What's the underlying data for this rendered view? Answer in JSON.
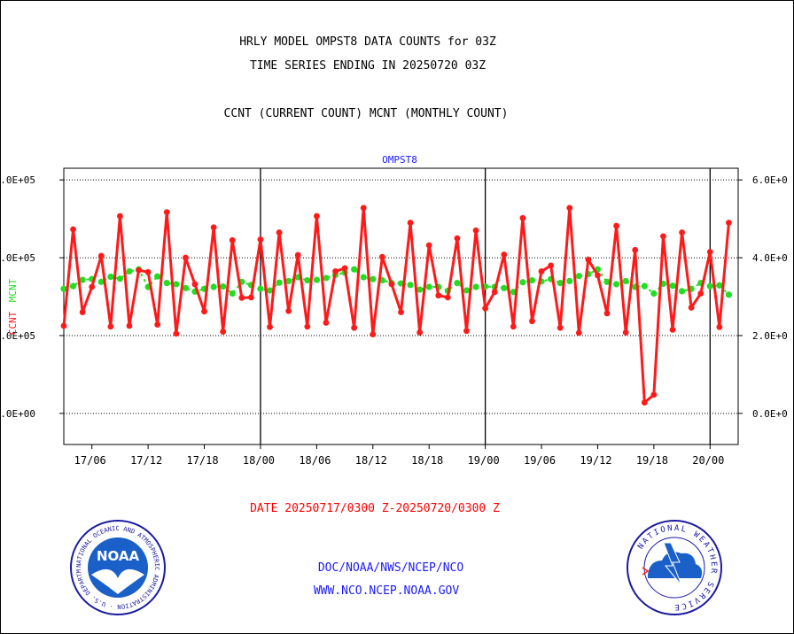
{
  "header": {
    "title_line1": "HRLY MODEL OMPST8 DATA COUNTS for 03Z",
    "title_line2": "TIME SERIES ENDING IN 20250720 03Z",
    "subtitle": "CCNT (CURRENT COUNT) MCNT (MONTHLY COUNT)"
  },
  "footer": {
    "date_range": "DATE 20250717/0300 Z-20250720/0300 Z",
    "link1": "DOC/NOAA/NWS/NCEP/NCO",
    "link2": "WWW.NCO.NCEP.NOAA.GOV"
  },
  "logos": {
    "noaa_text": "NOAA",
    "noaa_ring": "NATIONAL OCEANIC AND ATMOSPHERIC ADMINISTRATION · U.S. DEPARTMENT OF COMMERCE",
    "nws_ring": "NATIONAL WEATHER SERVICE"
  },
  "colors": {
    "ccnt": "#ff1a1a",
    "mcnt": "#22dd22",
    "title": "#000000",
    "date": "#ff0000",
    "links": "#1a1aff"
  },
  "chart_data": {
    "type": "line",
    "title": "OMPST8",
    "ylabel_left": [
      "CCNT",
      "MCNT"
    ],
    "left_ticks": [
      ".0E+00",
      ".0E+05",
      ".0E+05",
      ".0E+05"
    ],
    "right_ticks": [
      "0.0E+0",
      "2.0E+0",
      "4.0E+0",
      "6.0E+0"
    ],
    "tick_values": [
      0,
      200000,
      400000,
      600000
    ],
    "ylim": [
      -80000,
      630000
    ],
    "xlim": [
      0,
      72
    ],
    "x_ticks": [
      {
        "hour": 3,
        "label": "17/06"
      },
      {
        "hour": 9,
        "label": "17/12"
      },
      {
        "hour": 15,
        "label": "17/18"
      },
      {
        "hour": 21,
        "label": "18/00"
      },
      {
        "hour": 27,
        "label": "18/06"
      },
      {
        "hour": 33,
        "label": "18/12"
      },
      {
        "hour": 39,
        "label": "18/18"
      },
      {
        "hour": 45,
        "label": "19/00"
      },
      {
        "hour": 51,
        "label": "19/06"
      },
      {
        "hour": 57,
        "label": "19/12"
      },
      {
        "hour": 63,
        "label": "19/18"
      },
      {
        "hour": 69,
        "label": "20/00"
      }
    ],
    "day_boundaries": [
      21,
      45,
      69
    ],
    "series": [
      {
        "name": "CCNT",
        "values": [
          225000,
          473000,
          260000,
          325000,
          405000,
          223000,
          507000,
          225000,
          368000,
          363000,
          228000,
          517000,
          205000,
          400000,
          332000,
          262000,
          478000,
          210000,
          445000,
          297000,
          298000,
          447000,
          222000,
          465000,
          263000,
          407000,
          223000,
          507000,
          233000,
          365000,
          373000,
          220000,
          528000,
          203000,
          402000,
          332000,
          260000,
          490000,
          208000,
          432000,
          303000,
          298000,
          450000,
          212000,
          470000,
          270000,
          312000,
          408000,
          223000,
          502000,
          237000,
          365000,
          380000,
          220000,
          528000,
          207000,
          395000,
          355000,
          257000,
          482000,
          208000,
          420000,
          28000,
          48000,
          455000,
          215000,
          465000,
          272000,
          308000,
          415000,
          222000,
          490000
        ]
      },
      {
        "name": "MCNT",
        "values": [
          320000,
          327000,
          343000,
          345000,
          338000,
          351000,
          346000,
          365000,
          370000,
          325000,
          352000,
          335000,
          332000,
          322000,
          313000,
          320000,
          325000,
          326000,
          308000,
          338000,
          330000,
          320000,
          316000,
          336000,
          340000,
          350000,
          342000,
          343000,
          348000,
          356000,
          362000,
          370000,
          350000,
          345000,
          342000,
          335000,
          334000,
          330000,
          318000,
          325000,
          325000,
          315000,
          335000,
          316000,
          325000,
          326000,
          325000,
          322000,
          312000,
          337000,
          342000,
          339000,
          345000,
          335000,
          340000,
          353000,
          358000,
          370000,
          338000,
          332000,
          340000,
          325000,
          327000,
          308000,
          333000,
          328000,
          314000,
          320000,
          335000,
          327000,
          329000,
          305000
        ]
      }
    ]
  }
}
